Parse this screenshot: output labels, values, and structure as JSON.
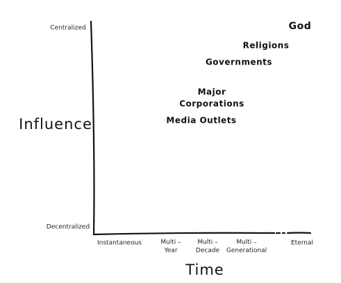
{
  "y_axis": {
    "title": "Influence",
    "ticks": [
      "Centralized",
      "Decentralized"
    ]
  },
  "x_axis": {
    "title": "Time",
    "ticks": [
      [
        "Instantaneous"
      ],
      [
        "Multi –",
        "Year"
      ],
      [
        "Multi –",
        "Decade"
      ],
      [
        "Multi –",
        "Generational"
      ],
      [
        "Eternal"
      ]
    ]
  },
  "items": [
    [
      "God"
    ],
    [
      "Religions"
    ],
    [
      "Governments"
    ],
    [
      "Major",
      "Corporations"
    ],
    [
      "Media Outlets"
    ]
  ]
}
